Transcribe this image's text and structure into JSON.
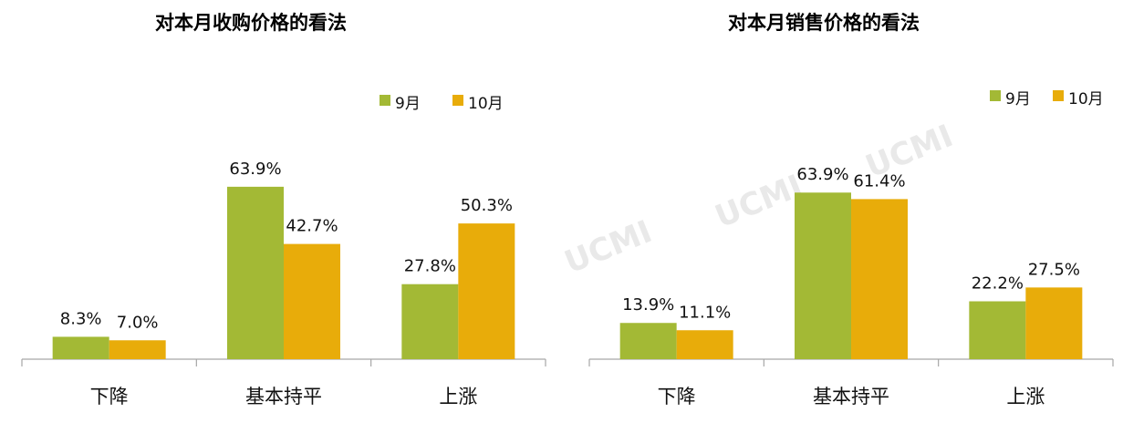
{
  "colors": {
    "sep": "#a3b935",
    "oct": "#e8ac0a",
    "axis": "#a6a6a6"
  },
  "watermark": "UCMI",
  "chart_data": [
    {
      "type": "bar",
      "title": "对本月收购价格的看法",
      "categories": [
        "下降",
        "基本持平",
        "上涨"
      ],
      "series": [
        {
          "name": "9月",
          "values": [
            8.3,
            63.9,
            27.8
          ]
        },
        {
          "name": "10月",
          "values": [
            7.0,
            42.7,
            50.3
          ]
        }
      ],
      "data_labels": [
        [
          "8.3%",
          "63.9%",
          "27.8%"
        ],
        [
          "7.0%",
          "42.7%",
          "50.3%"
        ]
      ],
      "legend": "top-right",
      "grid": false,
      "ylim": [
        0,
        100
      ]
    },
    {
      "type": "bar",
      "title": "对本月销售价格的看法",
      "categories": [
        "下降",
        "基本持平",
        "上涨"
      ],
      "series": [
        {
          "name": "9月",
          "values": [
            13.9,
            63.9,
            22.2
          ]
        },
        {
          "name": "10月",
          "values": [
            11.1,
            61.4,
            27.5
          ]
        }
      ],
      "data_labels": [
        [
          "13.9%",
          "63.9%",
          "22.2%"
        ],
        [
          "11.1%",
          "61.4%",
          "27.5%"
        ]
      ],
      "legend": "top-right",
      "grid": false,
      "ylim": [
        0,
        100
      ]
    }
  ]
}
